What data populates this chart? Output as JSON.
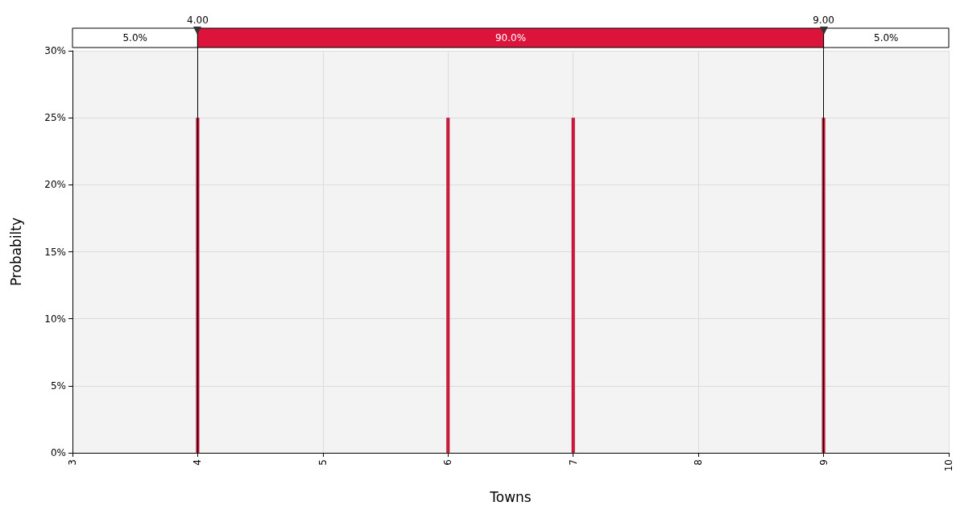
{
  "chart_data": {
    "type": "bar",
    "xlabel": "Towns",
    "ylabel": "Probabilty",
    "x": [
      4,
      6,
      7,
      9
    ],
    "values": [
      25,
      25,
      25,
      25
    ],
    "color": "#dc143c",
    "xlim": [
      3,
      10
    ],
    "xticks": [
      3,
      4,
      5,
      6,
      7,
      8,
      9,
      10
    ],
    "ylim": [
      0,
      30
    ],
    "yticks": [
      {
        "value": 0,
        "label": "0%"
      },
      {
        "value": 5,
        "label": "5%"
      },
      {
        "value": 10,
        "label": "10%"
      },
      {
        "value": 15,
        "label": "15%"
      },
      {
        "value": 20,
        "label": "20%"
      },
      {
        "value": 25,
        "label": "25%"
      },
      {
        "value": 30,
        "label": "30%"
      }
    ],
    "ref_lines": [
      {
        "axis": "x",
        "value": 4,
        "label": "4.00"
      },
      {
        "axis": "x",
        "value": 9,
        "label": "9.00"
      }
    ],
    "annotations": [
      "5.0%",
      "90.0%",
      "5.0%"
    ],
    "grid": true
  }
}
